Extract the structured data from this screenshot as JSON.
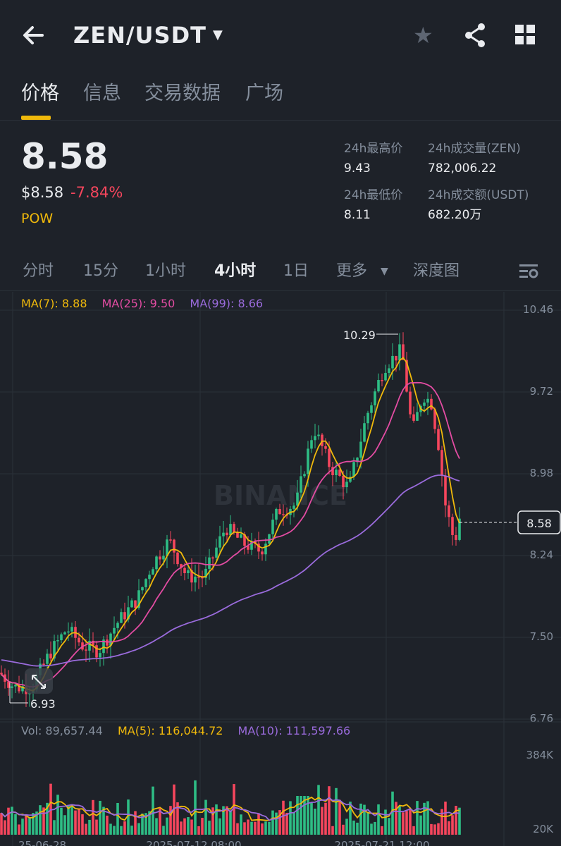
{
  "header": {
    "back_icon": "arrow-left-icon",
    "pair": "ZEN/USDT",
    "pair_caret_icon": "caret-down-icon",
    "star_icon": "star-icon",
    "share_icon": "share-icon",
    "grid_icon": "grid-icon"
  },
  "tabs": [
    {
      "label": "价格",
      "active": true
    },
    {
      "label": "信息",
      "active": false
    },
    {
      "label": "交易数据",
      "active": false
    },
    {
      "label": "广场",
      "active": false
    }
  ],
  "ticker": {
    "price": "8.58",
    "usd_price": "$8.58",
    "change": "-7.84%",
    "tag": "POW",
    "stats": {
      "high_label": "24h最高价",
      "high_value": "9.43",
      "low_label": "24h最低价",
      "low_value": "8.11",
      "vol_zen_label": "24h成交量(ZEN)",
      "vol_zen_value": "782,006.22",
      "vol_usdt_label": "24h成交额(USDT)",
      "vol_usdt_value": "682.20万"
    }
  },
  "timeframes": [
    {
      "label": "分时",
      "active": false
    },
    {
      "label": "15分",
      "active": false
    },
    {
      "label": "1小时",
      "active": false
    },
    {
      "label": "4小时",
      "active": true
    },
    {
      "label": "1日",
      "active": false
    },
    {
      "label": "更多",
      "active": false
    },
    {
      "label": "深度图",
      "active": false
    }
  ],
  "indicators": {
    "ma7": "MA(7): 8.88",
    "ma25": "MA(25): 9.50",
    "ma99": "MA(99): 8.66",
    "vol": "Vol: 89,657.44",
    "vma5": "MA(5): 116,044.72",
    "vma10": "MA(10): 111,597.66"
  },
  "colors": {
    "bg": "#1e2229",
    "up": "#2ebd85",
    "down": "#f6465d",
    "ma7": "#f0b90b",
    "ma25": "#e34ca3",
    "ma99": "#9a6bdc",
    "accent": "#f0b90b"
  },
  "chart_data": {
    "type": "candlestick",
    "y_ticks": [
      "10.46",
      "9.72",
      "8.98",
      "8.24",
      "7.50",
      "6.76"
    ],
    "ylim": [
      6.76,
      10.46
    ],
    "vol_ticks": [
      "384K",
      "20K"
    ],
    "last_price_label": "8.58",
    "high_label": "10.29",
    "low_label": "6.93",
    "watermark": "BINANCE",
    "x_labels": [
      "25-06-28",
      "2025-07-12 08:00",
      "2025-07-21 12:00"
    ]
  }
}
